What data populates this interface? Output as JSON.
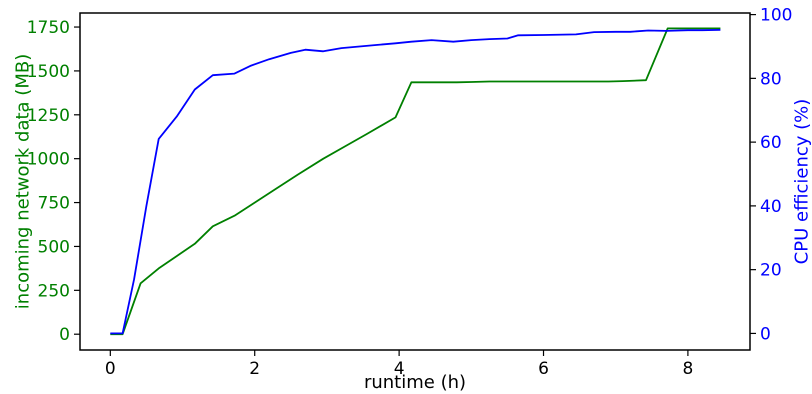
{
  "chart_data": {
    "type": "line",
    "xlabel": "runtime (h)",
    "ylabel_left": "incoming network data (MB)",
    "ylabel_right": "CPU efficiency (%)",
    "xlim": [
      -0.42,
      8.86
    ],
    "ylim_left": [
      -90,
      1830
    ],
    "ylim_right": [
      -5.2,
      100.5
    ],
    "xticks": [
      0,
      2,
      4,
      6,
      8
    ],
    "yticks_left": [
      0,
      250,
      500,
      750,
      1000,
      1250,
      1500,
      1750
    ],
    "yticks_right": [
      0,
      20,
      40,
      60,
      80,
      100
    ],
    "grid": false,
    "colors": {
      "left_axis": "#008000",
      "right_axis": "#0000ff",
      "frame": "#000000"
    },
    "series": [
      {
        "axis": "left",
        "color": "#008000",
        "x": [
          0,
          0.17,
          0.42,
          0.67,
          0.92,
          1.17,
          1.42,
          1.72,
          2.0,
          2.3,
          2.6,
          2.95,
          3.25,
          3.55,
          3.95,
          4.17,
          4.45,
          4.8,
          5.0,
          5.25,
          5.55,
          6.0,
          6.5,
          6.9,
          7.1,
          7.42,
          7.72,
          7.95,
          8.2,
          8.45
        ],
        "y": [
          0,
          0,
          290,
          375,
          445,
          515,
          615,
          675,
          750,
          830,
          910,
          1000,
          1070,
          1140,
          1235,
          1435,
          1435,
          1435,
          1437,
          1440,
          1440,
          1440,
          1440,
          1440,
          1442,
          1447,
          1742,
          1742,
          1742,
          1742
        ]
      },
      {
        "axis": "right",
        "color": "#0000ff",
        "x": [
          0,
          0.17,
          0.33,
          0.5,
          0.67,
          0.92,
          1.17,
          1.42,
          1.72,
          1.95,
          2.2,
          2.5,
          2.7,
          2.95,
          3.2,
          3.45,
          3.7,
          3.95,
          4.17,
          4.45,
          4.75,
          5.0,
          5.25,
          5.5,
          5.65,
          6.0,
          6.45,
          6.7,
          7.0,
          7.2,
          7.45,
          7.7,
          8.0,
          8.2,
          8.45
        ],
        "y": [
          0,
          0,
          17,
          40,
          61,
          68,
          76.5,
          81,
          81.5,
          84,
          86,
          88,
          89,
          88.5,
          89.5,
          90,
          90.5,
          91,
          91.5,
          92,
          91.5,
          92,
          92.3,
          92.5,
          93.5,
          93.6,
          93.8,
          94.5,
          94.6,
          94.6,
          95,
          94.9,
          95.1,
          95.1,
          95.2
        ]
      }
    ]
  }
}
